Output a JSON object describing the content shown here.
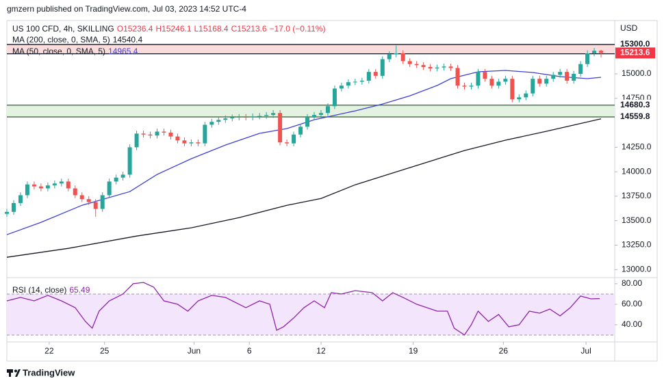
{
  "header": {
    "publisher": "gmzern published on TradingView.com, Jul 03, 2023 14:52 UTC-4"
  },
  "footer": {
    "brand": "TradingView"
  },
  "chart_data": [
    {
      "type": "candlestick",
      "symbol": "US 100 CFD, 4h, SKILLING",
      "ohlc_labels": [
        "O15236.4",
        "H15246.1",
        "L15168.4",
        "C15213.6"
      ],
      "change": "−17.0 (−0.11%)",
      "currency": "USD",
      "up_color": "#26a69a",
      "down_color": "#ef5350",
      "open": [
        13570,
        13590,
        13680,
        13760,
        13870,
        13850,
        13830,
        13860,
        13880,
        13900,
        13830,
        13760,
        13720,
        13690,
        13620,
        13760,
        13900,
        13940,
        13970,
        14250,
        14390,
        14380,
        14370,
        14410,
        14400,
        14360,
        14320,
        14290,
        14300,
        14290,
        14480,
        14510,
        14530,
        14545,
        14555,
        14560,
        14555,
        14565,
        14570,
        14580,
        14600,
        14300,
        14290,
        14380,
        14460,
        14560,
        14580,
        14600,
        14670,
        14850,
        14880,
        14915,
        14920,
        14930,
        15020,
        14980,
        15150,
        15200,
        15210,
        15130,
        15100,
        15090,
        15070,
        15055,
        15065,
        15075,
        15060,
        14880,
        14870,
        14880,
        15020,
        14950,
        14880,
        14920,
        14950,
        14740,
        14760,
        14800,
        14950,
        14900,
        14950,
        14990,
        15020,
        14930,
        15000,
        15100,
        15210,
        15236.4
      ],
      "high": [
        13620,
        13710,
        13790,
        13900,
        13900,
        13880,
        13890,
        13910,
        13930,
        13930,
        13860,
        13790,
        13750,
        13720,
        13790,
        13930,
        13970,
        14000,
        14280,
        14420,
        14420,
        14410,
        14440,
        14440,
        14430,
        14390,
        14350,
        14330,
        14330,
        14510,
        14540,
        14560,
        14575,
        14585,
        14590,
        14590,
        14595,
        14600,
        14610,
        14630,
        14630,
        14330,
        14410,
        14490,
        14590,
        14610,
        14630,
        14700,
        14880,
        14910,
        14945,
        14950,
        14960,
        15050,
        15050,
        15180,
        15230,
        15290,
        15240,
        15160,
        15130,
        15120,
        15100,
        15095,
        15105,
        15105,
        15090,
        14910,
        14910,
        15050,
        15050,
        14980,
        14950,
        14980,
        14980,
        14790,
        14830,
        14980,
        14980,
        14980,
        15020,
        15050,
        15050,
        15030,
        15130,
        15240,
        15265,
        15246.1
      ],
      "low": [
        13540,
        13560,
        13650,
        13730,
        13820,
        13800,
        13800,
        13830,
        13850,
        13800,
        13730,
        13690,
        13660,
        13540,
        13590,
        13730,
        13870,
        13910,
        13940,
        14220,
        14350,
        14340,
        14340,
        14370,
        14330,
        14290,
        14260,
        14260,
        14260,
        14260,
        14450,
        14480,
        14500,
        14515,
        14525,
        14525,
        14525,
        14535,
        14540,
        14550,
        14270,
        14260,
        14260,
        14350,
        14430,
        14530,
        14550,
        14570,
        14640,
        14820,
        14850,
        14885,
        14890,
        14900,
        14950,
        14950,
        15120,
        15170,
        15100,
        15070,
        15060,
        15040,
        15025,
        15025,
        15035,
        15030,
        14850,
        14840,
        14840,
        14850,
        14920,
        14850,
        14850,
        14890,
        14710,
        14710,
        14730,
        14770,
        14870,
        14870,
        14920,
        14960,
        14900,
        14900,
        14970,
        15070,
        15180,
        15168.4
      ],
      "close": [
        13590,
        13680,
        13760,
        13870,
        13850,
        13830,
        13860,
        13880,
        13900,
        13830,
        13760,
        13720,
        13690,
        13620,
        13760,
        13900,
        13940,
        13970,
        14250,
        14390,
        14380,
        14370,
        14410,
        14400,
        14360,
        14320,
        14290,
        14300,
        14290,
        14480,
        14510,
        14530,
        14545,
        14555,
        14560,
        14555,
        14565,
        14570,
        14580,
        14600,
        14300,
        14290,
        14380,
        14460,
        14560,
        14580,
        14600,
        14670,
        14850,
        14880,
        14915,
        14920,
        14930,
        15020,
        14980,
        15150,
        15200,
        15210,
        15130,
        15100,
        15090,
        15070,
        15055,
        15065,
        15075,
        15060,
        14880,
        14870,
        14880,
        15020,
        14950,
        14880,
        14920,
        14950,
        14740,
        14760,
        14800,
        14950,
        14900,
        14950,
        14990,
        15020,
        14930,
        15000,
        15100,
        15210,
        15236.4,
        15213.6
      ],
      "series": [
        {
          "name": "MA (200, close, 0, SMA, 5)",
          "last_value": 14540.4,
          "color": "#131722",
          "x": [
            0,
            9,
            19,
            27,
            34,
            41,
            46,
            51,
            59,
            67,
            73,
            79,
            87
          ],
          "values": [
            13126,
            13217,
            13343,
            13427,
            13531,
            13657,
            13727,
            13867,
            14042,
            14217,
            14322,
            14413,
            14540.4
          ]
        },
        {
          "name": "MA (50, close, 0, SMA, 5)",
          "last_value": 14965.4,
          "color": "#3f3fd9",
          "x": [
            0,
            5,
            11,
            18,
            22,
            27,
            32,
            37,
            41,
            45,
            51,
            55,
            59,
            63,
            65,
            69,
            73,
            77,
            81,
            85,
            87
          ],
          "values": [
            13357,
            13483,
            13657,
            13797,
            13972,
            14133,
            14273,
            14392,
            14441,
            14531,
            14622,
            14692,
            14776,
            14881,
            14951,
            15021,
            15035,
            15014,
            14972,
            14951,
            14965.4
          ]
        }
      ],
      "zones": [
        {
          "high": {
            "value": 15300,
            "label": "15300.0"
          },
          "low": 15205.3,
          "color": "#fadcdc",
          "line_color": "#131722"
        },
        {
          "high": 14680.3,
          "low": 14559.8,
          "color": "#e3f2e1",
          "line_color": "#2e5e2e"
        }
      ],
      "last_price": 15213.6,
      "last_price_color": "#f23645",
      "xlim": [
        0,
        89
      ],
      "ylim": [
        12925,
        15545
      ],
      "xticks": [
        {
          "value": 6.2,
          "label": "22"
        },
        {
          "value": 14.3,
          "label": "25"
        },
        {
          "value": 27.4,
          "label": "Jun"
        },
        {
          "value": 35.5,
          "label": "6"
        },
        {
          "value": 46,
          "label": "12"
        },
        {
          "value": 59.5,
          "label": "19"
        },
        {
          "value": 72.7,
          "label": "26"
        },
        {
          "value": 84.8,
          "label": "Jul"
        }
      ],
      "yticks": [
        {
          "value": 13000,
          "label": "13000.0"
        },
        {
          "value": 13250,
          "label": "13250.0"
        },
        {
          "value": 13500,
          "label": "13500.0"
        },
        {
          "value": 13750,
          "label": "13750.0"
        },
        {
          "value": 14000,
          "label": "14000.0"
        },
        {
          "value": 14250,
          "label": "14250.0"
        },
        {
          "value": 14750,
          "label": "14750.0"
        },
        {
          "value": 15000,
          "label": "15000.0"
        }
      ],
      "grid": false
    },
    {
      "type": "line",
      "title": "RSI (14, close)",
      "last_value": 65.49,
      "color": "#8e24aa",
      "x": [
        0,
        2,
        4,
        6,
        8,
        10,
        11.5,
        12.5,
        13.5,
        15,
        17,
        18.5,
        20,
        21.5,
        23,
        25,
        26.5,
        28,
        30,
        32,
        35,
        37,
        38.5,
        39.5,
        40.5,
        42,
        43.5,
        45,
        46.5,
        47.5,
        49,
        51,
        53.5,
        55,
        56.5,
        58,
        60,
        63,
        64.5,
        65.5,
        67,
        68,
        69,
        70.5,
        72,
        73.5,
        75,
        76.5,
        78,
        79.5,
        81,
        82.5,
        84,
        85.5,
        86.8
      ],
      "values": [
        63.3,
        66.7,
        63.3,
        68.7,
        63.3,
        56.7,
        43.3,
        36.7,
        53.3,
        63.3,
        70,
        80,
        81.3,
        76.7,
        63.3,
        60,
        53.3,
        63.3,
        68.7,
        66.7,
        56.7,
        63.3,
        60,
        34.7,
        38,
        46.7,
        56.7,
        63.3,
        56.7,
        71.3,
        70,
        73.3,
        71.3,
        63.3,
        71.3,
        66.7,
        60,
        53.3,
        53.3,
        36.7,
        30,
        40,
        53.3,
        43.3,
        50,
        38,
        40,
        53.3,
        51.3,
        55.3,
        48.7,
        56.7,
        68,
        65.3,
        65.49
      ],
      "band": [
        30,
        70
      ],
      "band_color": "#f3e5fb",
      "xlim": [
        0,
        89
      ],
      "ylim": [
        23.3,
        85.3
      ],
      "yticks": [
        {
          "value": 40,
          "label": "40.00"
        },
        {
          "value": 60,
          "label": "60.00"
        },
        {
          "value": 80,
          "label": "80.00"
        }
      ],
      "grid": false
    }
  ]
}
